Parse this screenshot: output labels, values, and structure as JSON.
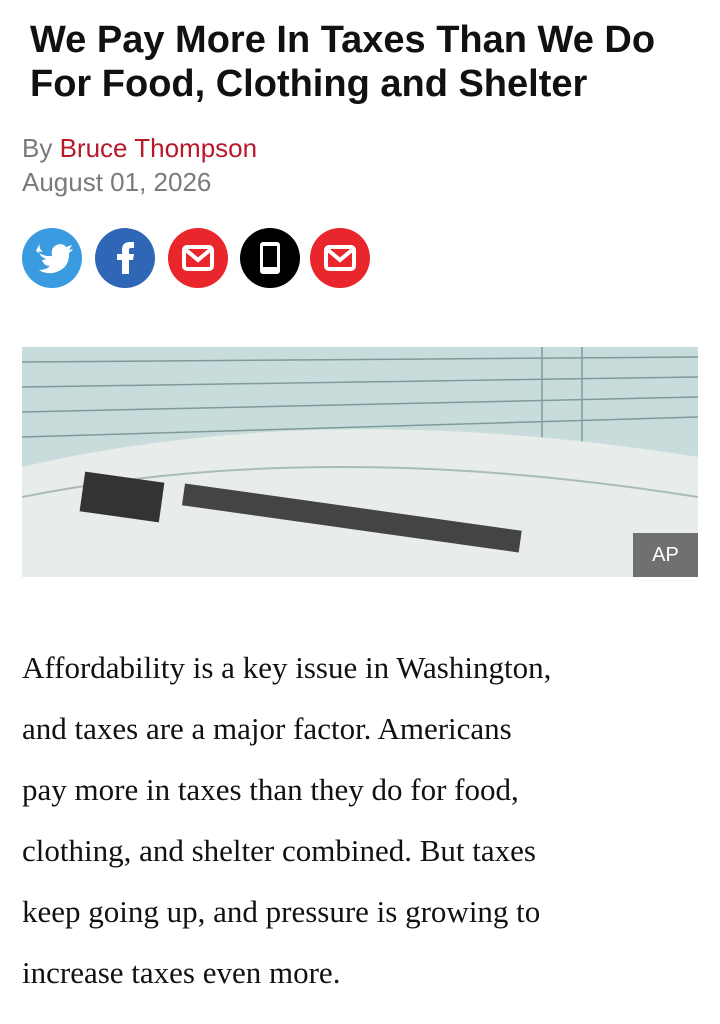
{
  "header": {
    "title_lines": [
      "We Pay More In Taxes Than We Do",
      "For Food, Clothing and Shelter"
    ]
  },
  "byline": {
    "prefix": "By",
    "author": "Bruce Thompson",
    "date": "August 01, 2026"
  },
  "image": {
    "credit": "AP"
  },
  "body": {
    "lines": [
      "Affordability is a key issue in Washington,",
      "and taxes are a major factor.  Americans",
      "pay more in taxes than they do for food,",
      "clothing, and shelter combined.  But taxes",
      "keep going up, and pressure is growing to",
      "increase taxes even more."
    ]
  }
}
